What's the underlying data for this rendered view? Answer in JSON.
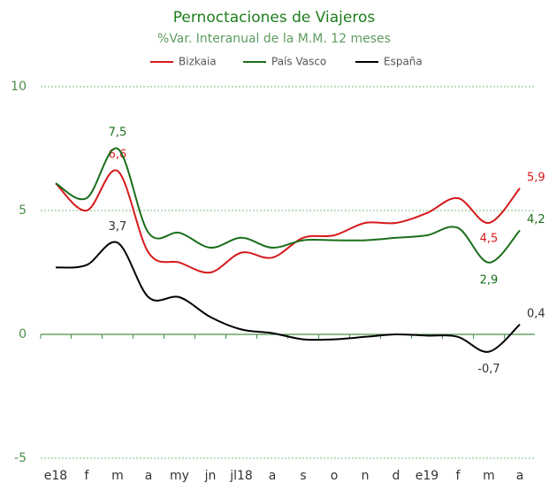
{
  "chart_data": {
    "type": "line",
    "title": "Pernoctaciones de Viajeros",
    "subtitle": "%Var. Interanual de la M.M. 12 meses",
    "categories": [
      "e18",
      "f",
      "m",
      "a",
      "my",
      "jn",
      "jl18",
      "a",
      "s",
      "o",
      "n",
      "d",
      "e19",
      "f",
      "m",
      "a"
    ],
    "series": [
      {
        "name": "Bizkaia",
        "color": "#d7191c",
        "values": [
          6.1,
          5.0,
          6.6,
          3.3,
          2.9,
          2.5,
          3.3,
          3.1,
          3.9,
          4.0,
          4.5,
          4.5,
          4.9,
          5.5,
          4.5,
          5.9
        ],
        "value_labels": [
          null,
          null,
          "6,6",
          null,
          null,
          null,
          null,
          null,
          null,
          null,
          null,
          null,
          null,
          null,
          "4,5",
          "5,9"
        ]
      },
      {
        "name": "País Vasco",
        "color": "#1a6e1a",
        "values": [
          6.1,
          5.5,
          7.5,
          4.1,
          4.1,
          3.5,
          3.9,
          3.5,
          3.8,
          3.8,
          3.8,
          3.9,
          4.0,
          4.3,
          2.9,
          4.2
        ],
        "value_labels": [
          null,
          null,
          "7,5",
          null,
          null,
          null,
          null,
          null,
          null,
          null,
          null,
          null,
          null,
          null,
          "2,9",
          "4,2"
        ]
      },
      {
        "name": "España",
        "color": "#000000",
        "values": [
          2.7,
          2.8,
          3.7,
          1.5,
          1.5,
          0.7,
          0.2,
          0.05,
          -0.2,
          -0.2,
          -0.1,
          0.0,
          -0.05,
          -0.1,
          -0.7,
          0.4
        ],
        "value_labels": [
          null,
          null,
          "3,7",
          null,
          null,
          null,
          null,
          null,
          null,
          null,
          null,
          null,
          null,
          null,
          "-0,7",
          "0,4"
        ]
      }
    ],
    "ylim": [
      -5,
      10
    ],
    "yticks": [
      -5,
      0,
      5,
      10
    ],
    "grid": true,
    "legend": "top"
  }
}
